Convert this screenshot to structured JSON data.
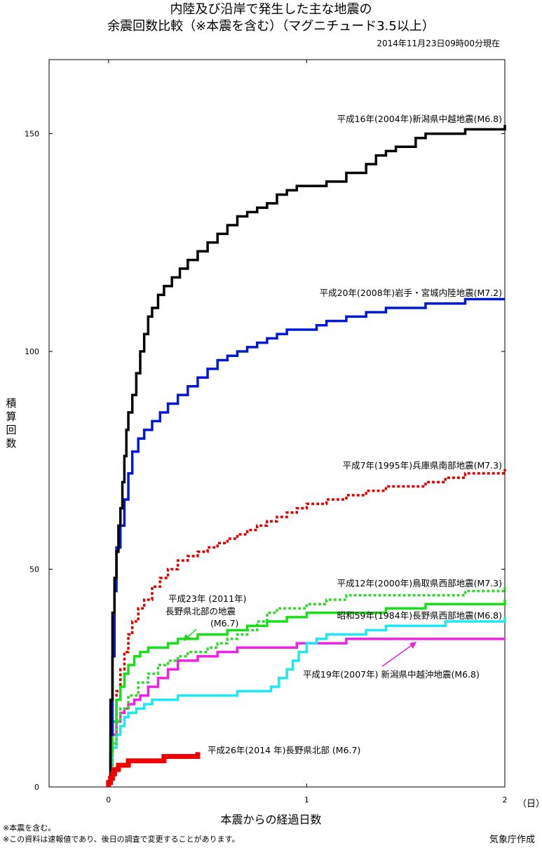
{
  "title": {
    "line1": "内陸及び沿岸で発生した主な地震の",
    "line2": "余震回数比較（※本震を含む）（マグニチュード3.5以上）",
    "as_of": "2014年11月23日09時00分現在"
  },
  "footer": {
    "note1": "※本震を含む。",
    "note2": "※この資料は速報値であり、後日の調査で変更することがあります。",
    "credit": "気象庁作成"
  },
  "chart_data": {
    "type": "line",
    "title": "内陸及び沿岸で発生した主な地震の 余震回数比較（※本震を含む）（マグニチュード3.5以上）",
    "xlabel": "本震からの経過日数",
    "x_unit": "（日）",
    "ylabel": "積算回数",
    "xlim": [
      -0.3,
      2.0
    ],
    "ylim": [
      0,
      167
    ],
    "xticks": [
      "0",
      "1",
      "2"
    ],
    "yticks": [
      "0",
      "50",
      "100",
      "150"
    ],
    "grid": false,
    "series": [
      {
        "name": "平成16年(2004年)新潟県中越地震(M6.8)",
        "color": "#000000",
        "style": "solid",
        "x": [
          0,
          0.01,
          0.02,
          0.03,
          0.04,
          0.05,
          0.06,
          0.07,
          0.08,
          0.09,
          0.1,
          0.12,
          0.14,
          0.16,
          0.18,
          0.2,
          0.22,
          0.25,
          0.28,
          0.32,
          0.36,
          0.4,
          0.45,
          0.5,
          0.55,
          0.6,
          0.65,
          0.7,
          0.75,
          0.8,
          0.85,
          0.9,
          0.95,
          1.0,
          1.05,
          1.1,
          1.2,
          1.3,
          1.35,
          1.4,
          1.45,
          1.55,
          1.6,
          1.7,
          1.8,
          1.9,
          2.0
        ],
        "y": [
          1,
          20,
          40,
          48,
          54,
          60,
          64,
          70,
          76,
          82,
          86,
          90,
          95,
          100,
          104,
          108,
          110,
          113,
          115,
          117,
          119,
          121,
          123,
          125,
          127,
          129,
          131,
          132,
          133,
          134,
          136,
          137,
          138,
          138,
          138,
          139,
          141,
          143,
          145,
          146,
          147,
          149,
          150,
          150,
          151,
          151,
          152
        ]
      },
      {
        "name": "平成20年(2008年)岩手・宮城内陸地震(M7.2)",
        "color": "#0018d8",
        "style": "solid",
        "x": [
          0,
          0.01,
          0.02,
          0.03,
          0.04,
          0.06,
          0.08,
          0.1,
          0.12,
          0.15,
          0.18,
          0.22,
          0.26,
          0.3,
          0.35,
          0.4,
          0.45,
          0.5,
          0.55,
          0.6,
          0.65,
          0.7,
          0.75,
          0.8,
          0.85,
          0.9,
          0.95,
          1.0,
          1.05,
          1.1,
          1.2,
          1.3,
          1.4,
          1.5,
          1.6,
          1.7,
          1.8,
          1.9,
          2.0
        ],
        "y": [
          1,
          12,
          30,
          45,
          55,
          60,
          66,
          72,
          77,
          80,
          82,
          84,
          86,
          88,
          90,
          92,
          94,
          96,
          98,
          99,
          100,
          101,
          102,
          103,
          104,
          105,
          105,
          105,
          106,
          107,
          108,
          109,
          110,
          110,
          111,
          111,
          112,
          112,
          112
        ]
      },
      {
        "name": "平成7年(1995年)兵庫県南部地震(M7.3)",
        "color": "#e00000",
        "style": "dotted",
        "x": [
          0,
          0.01,
          0.02,
          0.04,
          0.06,
          0.08,
          0.1,
          0.12,
          0.15,
          0.18,
          0.22,
          0.26,
          0.3,
          0.35,
          0.4,
          0.45,
          0.5,
          0.55,
          0.6,
          0.65,
          0.7,
          0.75,
          0.8,
          0.85,
          0.9,
          0.95,
          1.0,
          1.05,
          1.1,
          1.2,
          1.3,
          1.4,
          1.5,
          1.6,
          1.7,
          1.8,
          1.9,
          2.0
        ],
        "y": [
          1,
          8,
          15,
          22,
          27,
          31,
          35,
          38,
          41,
          43,
          46,
          48,
          50,
          52,
          53,
          54,
          55,
          56,
          57,
          58,
          59,
          60,
          61,
          62,
          63,
          64,
          65,
          65,
          66,
          67,
          68,
          69,
          69,
          70,
          71,
          72,
          72,
          73
        ]
      },
      {
        "name": "平成12年(2000年)鳥取県西部地震(M7.3)",
        "color": "#30d830",
        "style": "dotted",
        "x": [
          0,
          0.01,
          0.02,
          0.04,
          0.06,
          0.1,
          0.15,
          0.2,
          0.25,
          0.3,
          0.35,
          0.4,
          0.45,
          0.5,
          0.55,
          0.6,
          0.65,
          0.7,
          0.75,
          0.8,
          0.85,
          0.9,
          1.0,
          1.1,
          1.2,
          1.4,
          1.6,
          1.8,
          1.9,
          2.0
        ],
        "y": [
          1,
          5,
          10,
          15,
          18,
          21,
          24,
          26,
          28,
          29,
          30,
          31,
          31,
          32,
          33,
          34,
          35,
          36,
          38,
          40,
          41,
          41,
          42,
          43,
          44,
          44,
          44,
          45,
          45,
          46
        ]
      },
      {
        "name": "平成23年(2011年)長野県北部の地震(M6.7)",
        "color": "#18e018",
        "style": "solid",
        "x": [
          0,
          0.01,
          0.02,
          0.04,
          0.06,
          0.08,
          0.1,
          0.13,
          0.16,
          0.2,
          0.25,
          0.3,
          0.35,
          0.4,
          0.45,
          0.5,
          0.6,
          0.7,
          0.8,
          0.9,
          1.0,
          1.2,
          1.4,
          1.6,
          1.8,
          2.0
        ],
        "y": [
          1,
          8,
          15,
          20,
          23,
          26,
          28,
          30,
          31,
          32,
          32,
          33,
          34,
          34,
          35,
          35,
          36,
          37,
          38,
          39,
          40,
          40,
          41,
          42,
          42,
          43
        ]
      },
      {
        "name": "昭和59年(1984年)長野県西部地震(M6.8)",
        "color": "#20e8f0",
        "style": "solid",
        "x": [
          0,
          0.01,
          0.02,
          0.04,
          0.06,
          0.08,
          0.1,
          0.14,
          0.18,
          0.22,
          0.28,
          0.35,
          0.45,
          0.55,
          0.65,
          0.75,
          0.82,
          0.86,
          0.9,
          0.93,
          0.96,
          1.0,
          1.05,
          1.1,
          1.2,
          1.3,
          1.4,
          1.5,
          1.6,
          1.7,
          1.8,
          1.9,
          2.0
        ],
        "y": [
          1,
          5,
          9,
          12,
          14,
          16,
          17,
          18,
          19,
          20,
          20,
          21,
          21,
          21,
          22,
          22,
          23,
          25,
          27,
          29,
          31,
          33,
          34,
          35,
          35,
          36,
          37,
          37,
          37,
          38,
          38,
          38,
          39
        ]
      },
      {
        "name": "平成19年(2007年)新潟県中越沖地震(M6.8)",
        "color": "#f020e8",
        "style": "solid",
        "x": [
          0,
          0.01,
          0.02,
          0.04,
          0.06,
          0.08,
          0.1,
          0.13,
          0.16,
          0.2,
          0.25,
          0.3,
          0.35,
          0.45,
          0.55,
          0.65,
          0.75,
          0.85,
          0.95,
          1.0,
          1.2,
          1.4,
          1.6,
          1.8,
          2.0
        ],
        "y": [
          1,
          7,
          12,
          15,
          17,
          18,
          19,
          20,
          21,
          23,
          25,
          27,
          29,
          30,
          31,
          32,
          32,
          32,
          33,
          33,
          34,
          34,
          34,
          34,
          34
        ]
      },
      {
        "name": "平成26年(2014 年)長野県北部 (M6.7)",
        "color": "#f00000",
        "style": "solid",
        "x": [
          0,
          0.01,
          0.02,
          0.03,
          0.05,
          0.07,
          0.1,
          0.2,
          0.28,
          0.32,
          0.4,
          0.45
        ],
        "y": [
          1,
          2,
          3,
          4,
          5,
          5,
          6,
          6,
          7,
          7,
          7,
          8
        ]
      }
    ],
    "annotations": {
      "nagano2011": [
        "平成23年 (2011年)",
        "長野県北部の地震",
        "(M6.7)"
      ],
      "chuetsuoki": "平成19年(2007年) 新潟県中越沖地震(M6.8)",
      "nagano2014": "平成26年(2014 年)長野県北部 (M6.7)"
    }
  }
}
